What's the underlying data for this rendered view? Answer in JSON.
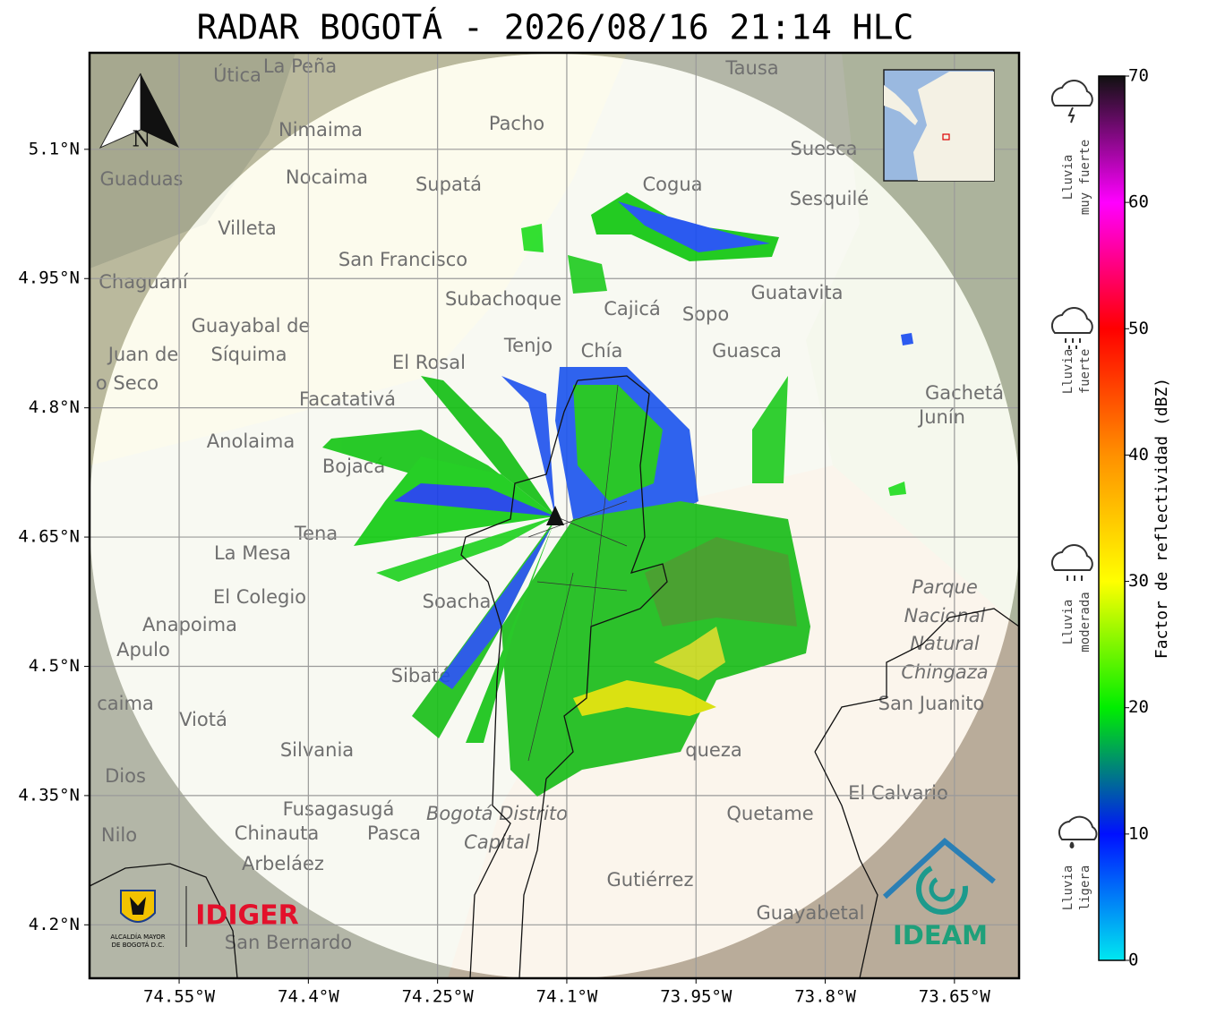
{
  "map": {
    "title": "RADAR BOGOTÁ - 2026/08/16 21:14 HLC",
    "xlim": [
      -74.654,
      -73.575
    ],
    "ylim": [
      4.138,
      5.212
    ],
    "xticks": [
      {
        "value": -74.55,
        "label": "74.55°W"
      },
      {
        "value": -74.4,
        "label": "74.4°W"
      },
      {
        "value": -74.25,
        "label": "74.25°W"
      },
      {
        "value": -74.1,
        "label": "74.1°W"
      },
      {
        "value": -73.95,
        "label": "73.95°W"
      },
      {
        "value": -73.8,
        "label": "73.8°W"
      },
      {
        "value": -73.65,
        "label": "73.65°W"
      }
    ],
    "yticks": [
      {
        "value": 5.1,
        "label": "5.1°N"
      },
      {
        "value": 4.95,
        "label": "4.95°N"
      },
      {
        "value": 4.8,
        "label": "4.8°N"
      },
      {
        "value": 4.65,
        "label": "4.65°N"
      },
      {
        "value": 4.5,
        "label": "4.5°N"
      },
      {
        "value": 4.35,
        "label": "4.35°N"
      },
      {
        "value": 4.2,
        "label": "4.2°N"
      }
    ],
    "grid": true,
    "north": "N",
    "places": [
      "Útica",
      "La Peña",
      "Tausa",
      "Pacho",
      "Nimaima",
      "Guaduas",
      "Nocaima",
      "Supatá",
      "Cogua",
      "Suesca",
      "Sesquilé",
      "Villeta",
      "San Francisco",
      "Chaguaní",
      "Guatavita",
      "Subachoque",
      "Cajicá",
      "Sopo",
      "Guayabal de",
      "Síquima",
      "Tenjo",
      "Chía",
      "Guasca",
      "Juan de",
      "o Seco",
      "El Rosal",
      "Facatativá",
      "Gachetá",
      "Junín",
      "Anolaima",
      "Bojacá",
      "Tena",
      "La Mesa",
      "El Colegio",
      "Soacha",
      "Parque",
      "Nacional",
      "Natural",
      "Chingaza",
      "Anapoima",
      "Apulo",
      "Sibaté",
      "San Juanito",
      "caima",
      "Viotá",
      "Silvania",
      "queza",
      "Dios",
      "El Calvario",
      "Fusagasugá",
      "Bogotá Distrito",
      "Capital",
      "Quetame",
      "Nilo",
      "Chinauta",
      "Pasca",
      "Arbeláez",
      "Gutiérrez",
      "Guayabetal",
      "San Bernardo"
    ],
    "colorbar": {
      "label": "Factor de reflectividad (dBZ)",
      "lim": [
        0,
        70
      ],
      "ticks": [
        0,
        10,
        20,
        30,
        40,
        50,
        60,
        70
      ],
      "colors": [
        "#00e8f0",
        "#0010ff",
        "#00ee00",
        "#ffff00",
        "#ff9000",
        "#ff0000",
        "#ff00ff",
        "#111111"
      ]
    },
    "rain_classes": [
      [
        "Lluvia",
        "muy fuerte"
      ],
      [
        "Lluvia",
        "fuerte"
      ],
      [
        "Lluvia",
        "moderada"
      ],
      [
        "Lluvia",
        "ligera"
      ]
    ],
    "logos": {
      "alcaldia": [
        "ALCALDÍA MAYOR",
        "DE BOGOTÁ D.C."
      ],
      "idiger": "IDIGER",
      "ideam": "IDEAM"
    }
  }
}
